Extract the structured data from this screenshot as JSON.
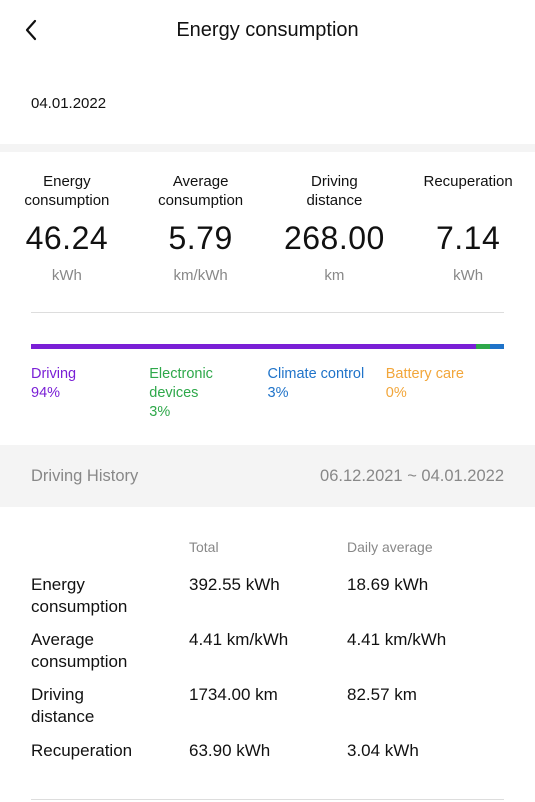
{
  "header": {
    "title": "Energy consumption",
    "back_icon": "chevron-left-icon"
  },
  "date": "04.01.2022",
  "stats": [
    {
      "label": "Energy consumption",
      "value": "46.24",
      "unit": "kWh"
    },
    {
      "label": "Average consumption",
      "value": "5.79",
      "unit": "km/kWh"
    },
    {
      "label": "Driving distance",
      "value": "268.00",
      "unit": "km"
    },
    {
      "label": "Recuperation",
      "value": "7.14",
      "unit": "kWh"
    }
  ],
  "breakdown": [
    {
      "label": "Driving",
      "percent": "94%",
      "share": 94,
      "color": "#7a1fd6"
    },
    {
      "label": "Electronic devices",
      "percent": "3%",
      "share": 3,
      "color": "#2ea84a"
    },
    {
      "label": "Climate control",
      "percent": "3%",
      "share": 3,
      "color": "#1f73c9"
    },
    {
      "label": "Battery care",
      "percent": "0%",
      "share": 0,
      "color": "#f2a63a"
    }
  ],
  "history": {
    "label": "Driving History",
    "range": "06.12.2021 ~ 04.01.2022"
  },
  "table": {
    "columns": {
      "total": "Total",
      "daily": "Daily average"
    },
    "rows": [
      {
        "label": "Energy consumption",
        "total": "392.55 kWh",
        "daily": "18.69 kWh"
      },
      {
        "label": "Average consumption",
        "total": "4.41 km/kWh",
        "daily": "4.41 km/kWh"
      },
      {
        "label": "Driving distance",
        "total": "1734.00 km",
        "daily": "82.57 km"
      },
      {
        "label": "Recuperation",
        "total": "63.90 kWh",
        "daily": "3.04 kWh"
      }
    ]
  }
}
